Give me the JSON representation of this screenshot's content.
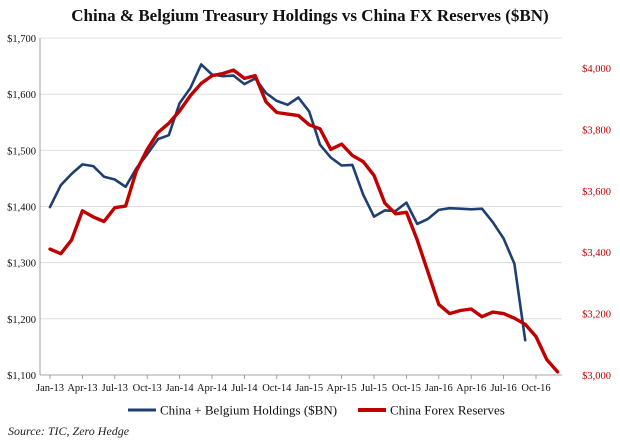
{
  "chart_data": {
    "type": "line",
    "title": "China & Belgium Treasury Holdings vs China FX Reserves ($BN)",
    "source": "Source: TIC, Zero Hedge",
    "x_start": "2013-01",
    "x_tick_labels": [
      "Jan-13",
      "Apr-13",
      "Jul-13",
      "Oct-13",
      "Jan-14",
      "Apr-14",
      "Jul-14",
      "Oct-14",
      "Jan-15",
      "Apr-15",
      "Jul-15",
      "Oct-15",
      "Jan-16",
      "Apr-16",
      "Jul-16",
      "Oct-16"
    ],
    "y_left": {
      "ticks": [
        "$1,100",
        "$1,200",
        "$1,300",
        "$1,400",
        "$1,500",
        "$1,600",
        "$1,700"
      ],
      "min": 1100,
      "max": 1700
    },
    "y_right": {
      "ticks": [
        "$3,000",
        "$3,200",
        "$3,400",
        "$3,600",
        "$3,800",
        "$4,000"
      ],
      "min": 3000,
      "max": 4000
    },
    "grid": true,
    "legend_position": "bottom",
    "series": [
      {
        "name": "China + Belgium Holdings ($BN)",
        "axis": "left",
        "color": "#1f3f73",
        "values": [
          1399,
          1438,
          1458,
          1475,
          1472,
          1453,
          1448,
          1435,
          1468,
          1493,
          1520,
          1527,
          1584,
          1611,
          1653,
          1635,
          1632,
          1633,
          1618,
          1628,
          1602,
          1588,
          1581,
          1594,
          1569,
          1510,
          1487,
          1473,
          1474,
          1421,
          1382,
          1393,
          1392,
          1407,
          1369,
          1378,
          1394,
          1397,
          1396,
          1395,
          1396,
          1372,
          1343,
          1298,
          1162
        ]
      },
      {
        "name": "China Forex Reserves",
        "axis": "right",
        "color": "#c00000",
        "values": [
          3410,
          3395,
          3440,
          3535,
          3515,
          3500,
          3545,
          3550,
          3665,
          3735,
          3790,
          3820,
          3860,
          3910,
          3950,
          3975,
          3982,
          3993,
          3966,
          3975,
          3890,
          3855,
          3850,
          3845,
          3815,
          3802,
          3735,
          3752,
          3715,
          3695,
          3650,
          3560,
          3525,
          3530,
          3440,
          3335,
          3230,
          3200,
          3210,
          3215,
          3190,
          3205,
          3200,
          3185,
          3165,
          3125,
          3050,
          3010
        ]
      }
    ]
  }
}
